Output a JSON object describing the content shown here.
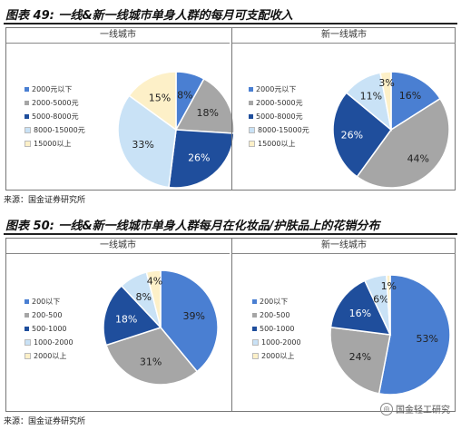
{
  "figure1": {
    "title": "图表 49:  一线&新一线城市单身人群的每月可支配收入",
    "source": "来源：国金证券研究所"
  },
  "figure2": {
    "title": "图表 50:  一线&新一线城市单身人群每月在化妆品/护肤品上的花销分布",
    "source": "来源：国金证券研究所"
  },
  "watermark": "国金轻工研究",
  "colors": {
    "blue": "#4a7fd2",
    "gray": "#a6a6a6",
    "navy": "#1f4e9c",
    "lightblue": "#c9e2f6",
    "cream": "#fdf0c8"
  },
  "chart_data": [
    {
      "type": "pie",
      "title": "一线城市",
      "categories": [
        "2000元以下",
        "2000-5000元",
        "5000-8000元",
        "8000-15000元",
        "15000以上"
      ],
      "values": [
        8,
        18,
        26,
        33,
        15
      ],
      "labels": [
        "8%",
        "18%",
        "26%",
        "33%",
        "15%"
      ],
      "colors": [
        "#4a7fd2",
        "#a6a6a6",
        "#1f4e9c",
        "#c9e2f6",
        "#fdf0c8"
      ]
    },
    {
      "type": "pie",
      "title": "新一线城市",
      "categories": [
        "2000元以下",
        "2000-5000元",
        "5000-8000元",
        "8000-15000元",
        "15000以上"
      ],
      "values": [
        16,
        44,
        26,
        11,
        3
      ],
      "labels": [
        "16%",
        "44%",
        "26%",
        "11%",
        "3%"
      ],
      "colors": [
        "#4a7fd2",
        "#a6a6a6",
        "#1f4e9c",
        "#c9e2f6",
        "#fdf0c8"
      ]
    },
    {
      "type": "pie",
      "title": "一线城市",
      "categories": [
        "200以下",
        "200-500",
        "500-1000",
        "1000-2000",
        "2000以上"
      ],
      "values": [
        39,
        31,
        18,
        8,
        4
      ],
      "labels": [
        "39%",
        "31%",
        "18%",
        "8%",
        "4%"
      ],
      "colors": [
        "#4a7fd2",
        "#a6a6a6",
        "#1f4e9c",
        "#c9e2f6",
        "#fdf0c8"
      ]
    },
    {
      "type": "pie",
      "title": "新一线城市",
      "categories": [
        "200以下",
        "200-500",
        "500-1000",
        "1000-2000",
        "2000以上"
      ],
      "values": [
        53,
        24,
        16,
        6,
        1
      ],
      "labels": [
        "53%",
        "24%",
        "16%",
        "6%",
        "1%"
      ],
      "colors": [
        "#4a7fd2",
        "#a6a6a6",
        "#1f4e9c",
        "#c9e2f6",
        "#fdf0c8"
      ]
    }
  ]
}
